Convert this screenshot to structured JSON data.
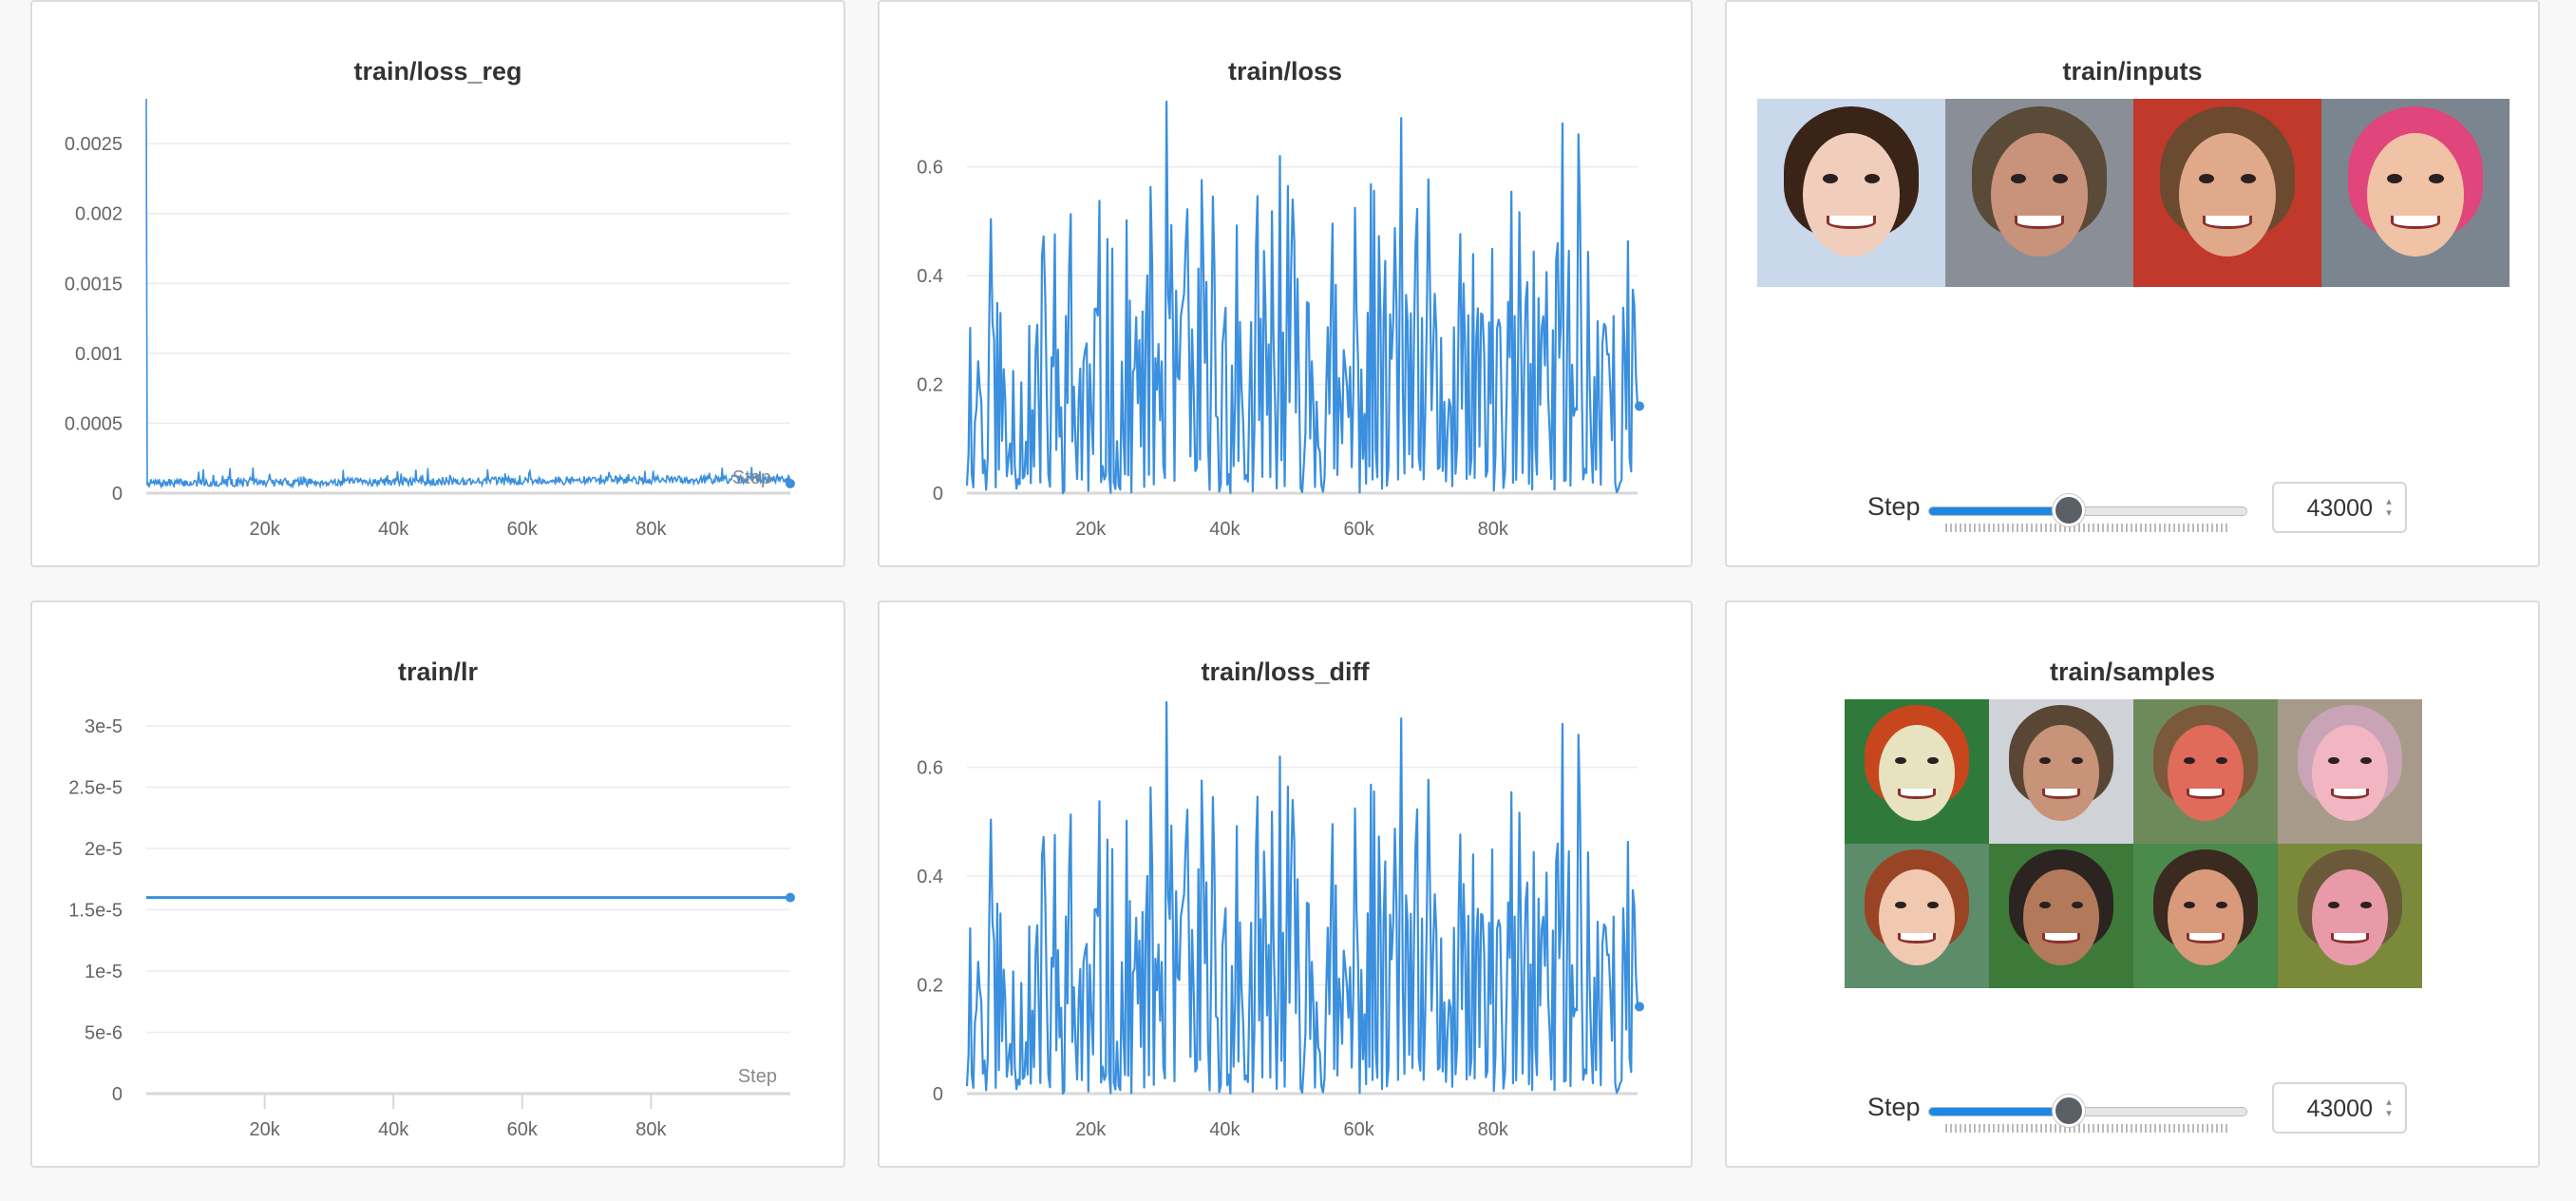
{
  "accent_color": "#3a8fde",
  "step_axis_label": "Step",
  "panels": {
    "loss_reg": {
      "title": "train/loss_reg",
      "y_ticks": [
        "0.0025",
        "0.002",
        "0.0015",
        "0.001",
        "0.0005",
        "0"
      ],
      "x_ticks": [
        "20k",
        "40k",
        "60k",
        "80k"
      ]
    },
    "loss": {
      "title": "train/loss",
      "y_ticks": [
        "0.6",
        "0.4",
        "0.2",
        "0"
      ],
      "x_ticks": [
        "20k",
        "40k",
        "60k",
        "80k"
      ]
    },
    "inputs": {
      "title": "train/inputs",
      "images": [
        "smiling-woman-vintage",
        "man-portrait",
        "smiling-young-man",
        "baby-pink-hat"
      ],
      "step_label": "Step",
      "step_value": "43000",
      "slider_fraction": 0.43
    },
    "lr": {
      "title": "train/lr",
      "y_ticks": [
        "3e-5",
        "2.5e-5",
        "2e-5",
        "1.5e-5",
        "1e-5",
        "5e-6",
        "0"
      ],
      "x_ticks": [
        "20k",
        "40k",
        "60k",
        "80k"
      ]
    },
    "loss_diff": {
      "title": "train/loss_diff",
      "y_ticks": [
        "0.6",
        "0.4",
        "0.2",
        "0"
      ],
      "x_ticks": [
        "20k",
        "40k",
        "60k",
        "80k"
      ]
    },
    "samples": {
      "title": "train/samples",
      "images": [
        "sample-woman-red-hair",
        "sample-man-stubble",
        "sample-man-smiling",
        "sample-baby",
        "sample-woman-vintage",
        "sample-man-beard",
        "sample-man-beard-2",
        "sample-child-field"
      ],
      "step_label": "Step",
      "step_value": "43000",
      "slider_fraction": 0.43
    }
  },
  "chart_data": [
    {
      "type": "line",
      "title": "train/loss_reg",
      "xlabel": "Step",
      "ylabel": "",
      "xlim": [
        0,
        100000
      ],
      "ylim": [
        0,
        0.0028
      ],
      "series": [
        {
          "values_summary": "spike to ~0.0028 at step 0, then ~0.00003-0.00008 noise rising slightly to ~0.00008 at 100k",
          "x": [
            0,
            500,
            10000,
            30000,
            50000,
            70000,
            90000,
            100000
          ],
          "y": [
            0.0028,
            5e-05,
            4e-05,
            5e-05,
            5e-05,
            6e-05,
            7e-05,
            8e-05
          ]
        }
      ]
    },
    {
      "type": "line",
      "title": "train/loss",
      "xlabel": "Step",
      "ylabel": "",
      "xlim": [
        0,
        100000
      ],
      "ylim": [
        0,
        0.72
      ],
      "series": [
        {
          "x": [
            30000,
            47000,
            66000,
            91000,
            100000
          ],
          "y": [
            0.72,
            0.62,
            0.69,
            0.68,
            0.16
          ]
        }
      ]
    },
    {
      "type": "line",
      "title": "train/lr",
      "xlabel": "Step",
      "ylabel": "",
      "xlim": [
        0,
        100000
      ],
      "ylim": [
        0,
        3e-05
      ],
      "series": [
        {
          "x": [
            0,
            100000
          ],
          "y": [
            1.6e-05,
            1.6e-05
          ]
        }
      ]
    },
    {
      "type": "line",
      "title": "train/loss_diff",
      "xlabel": "Step",
      "ylabel": "",
      "xlim": [
        0,
        100000
      ],
      "ylim": [
        0,
        0.72
      ],
      "series": [
        {
          "x": [
            30000,
            47000,
            66000,
            91000,
            100000
          ],
          "y": [
            0.72,
            0.62,
            0.69,
            0.68,
            0.16
          ]
        }
      ]
    }
  ]
}
